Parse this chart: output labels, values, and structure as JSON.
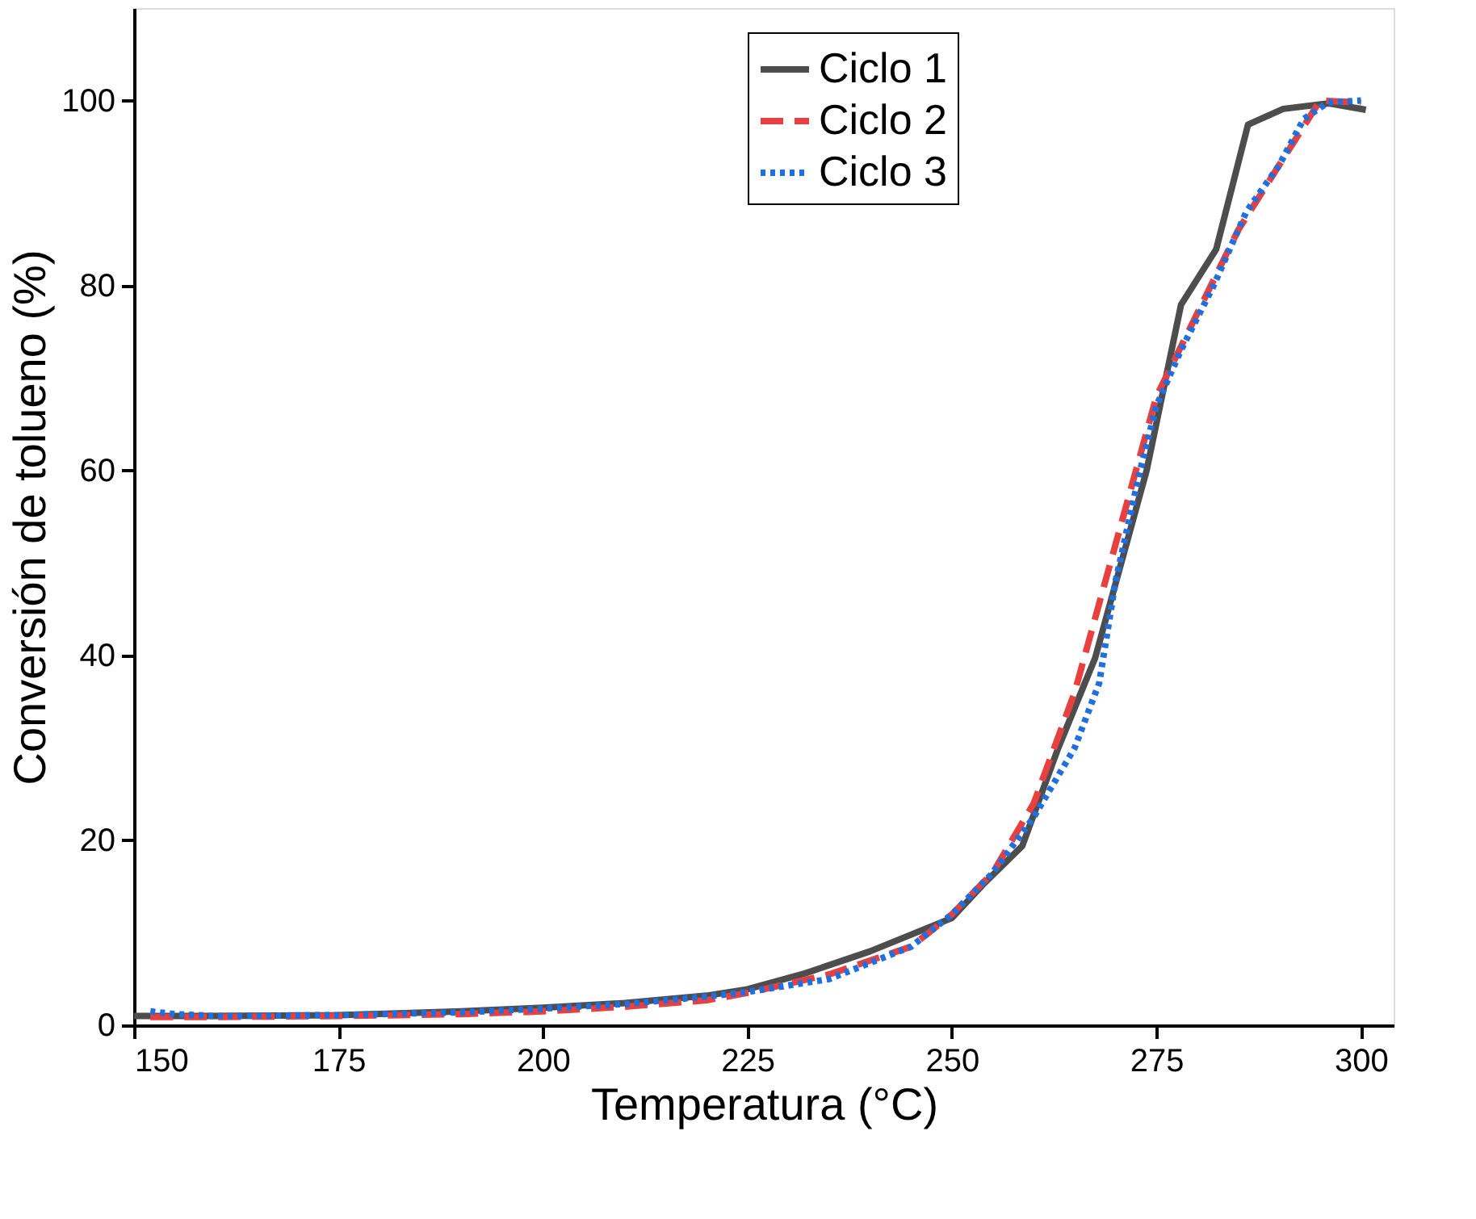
{
  "chart_data": {
    "type": "line",
    "xlabel": "Temperatura (°C)",
    "ylabel": "Conversión de tolueno (%)",
    "xlim": [
      150,
      304
    ],
    "xticks": [
      150,
      175,
      200,
      225,
      250,
      275,
      300
    ],
    "ylim": [
      0,
      110
    ],
    "yticks": [
      0,
      20,
      40,
      60,
      80,
      100
    ],
    "grid": false,
    "legend": "top right",
    "marker": "none",
    "series": [
      {
        "name": "Ciclo 1",
        "color": "#4d4d4d",
        "line_style": "solid",
        "x": [
          150,
          160,
          175,
          190,
          200,
          210,
          220,
          225,
          232,
          240,
          250,
          254,
          258.6,
          263,
          267.5,
          273.8,
          278,
          282.3,
          286.2,
          290.5,
          296.1,
          300.6
        ],
        "values": [
          1.0,
          1.0,
          1.1,
          1.5,
          1.9,
          2.4,
          3.2,
          3.9,
          5.6,
          8.0,
          11.6,
          15.4,
          19.4,
          30,
          39.7,
          60,
          77.9,
          83.9,
          97.4,
          99.1,
          99.7,
          99.0
        ]
      },
      {
        "name": "Ciclo 2",
        "color": "#e8403f",
        "line_style": "dashed",
        "x": [
          152,
          160,
          175,
          190,
          200,
          210,
          220,
          225,
          235,
          245,
          250,
          255,
          260,
          265,
          270,
          275,
          280,
          285,
          290,
          295,
          300
        ],
        "values": [
          0.9,
          0.9,
          1.0,
          1.2,
          1.5,
          2.0,
          2.7,
          3.5,
          5.5,
          8.5,
          12,
          16.5,
          24,
          36,
          52,
          68,
          77,
          86,
          93,
          100,
          99.8
        ]
      },
      {
        "name": "Ciclo 3",
        "color": "#1f6fe0",
        "line_style": "dotted",
        "x": [
          152,
          155,
          160,
          175,
          190,
          200,
          210,
          220,
          225,
          235,
          245,
          250,
          255,
          260,
          265,
          268,
          270,
          273,
          275,
          278,
          282,
          286,
          290,
          293,
          296,
          300
        ],
        "values": [
          1.5,
          1.2,
          1.0,
          1.1,
          1.4,
          1.8,
          2.3,
          3.1,
          3.6,
          5.0,
          8.5,
          12,
          16.5,
          22.5,
          30,
          37,
          48,
          60,
          67,
          73,
          80,
          88,
          93,
          98,
          99.8,
          100
        ]
      }
    ]
  }
}
